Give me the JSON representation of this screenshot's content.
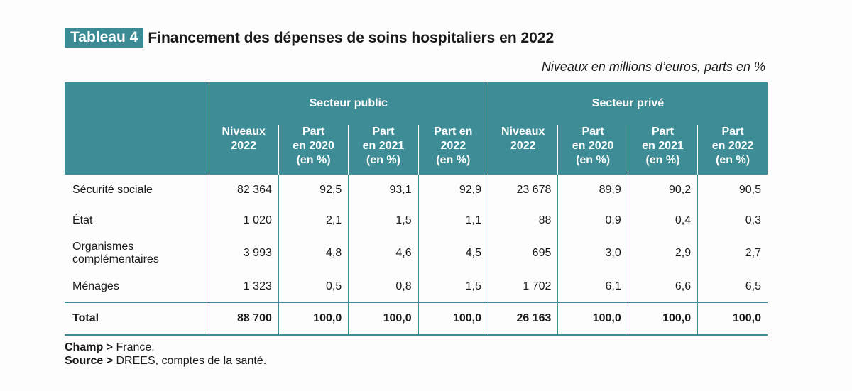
{
  "title": {
    "tag": "Tableau 4",
    "text": "Financement des dépenses de soins hospitaliers en 2022"
  },
  "units": "Niveaux en millions d’euros, parts en %",
  "groups": {
    "public": "Secteur public",
    "private": "Secteur privé"
  },
  "columns": [
    "Niveaux 2022",
    "Part en 2020 (en %)",
    "Part en 2021 (en %)",
    "Part en 2022 (en %)",
    "Niveaux 2022",
    "Part en 2020 (en %)",
    "Part en 2021 (en %)",
    "Part en 2022 (en %)"
  ],
  "column_lines": [
    [
      "Niveaux",
      "2022"
    ],
    [
      "Part",
      "en 2020",
      "(en %)"
    ],
    [
      "Part",
      "en 2021",
      "(en %)"
    ],
    [
      "Part en",
      "2022",
      "(en %)"
    ],
    [
      "Niveaux",
      "2022"
    ],
    [
      "Part",
      "en 2020",
      "(en %)"
    ],
    [
      "Part",
      "en 2021",
      "(en %)"
    ],
    [
      "Part",
      "en 2022",
      "(en %)"
    ]
  ],
  "rows": [
    {
      "label": "Sécurité sociale",
      "label_lines": [
        "Sécurité sociale"
      ],
      "values": [
        "82 364",
        "92,5",
        "93,1",
        "92,9",
        "23 678",
        "89,9",
        "90,2",
        "90,5"
      ]
    },
    {
      "label": "État",
      "label_lines": [
        "État"
      ],
      "values": [
        "1 020",
        "2,1",
        "1,5",
        "1,1",
        "88",
        "0,9",
        "0,4",
        "0,3"
      ]
    },
    {
      "label": "Organismes complémentaires",
      "label_lines": [
        "Organismes",
        "complémentaires"
      ],
      "values": [
        "3 993",
        "4,8",
        "4,6",
        "4,5",
        "695",
        "3,0",
        "2,9",
        "2,7"
      ]
    },
    {
      "label": "Ménages",
      "label_lines": [
        "Ménages"
      ],
      "values": [
        "1 323",
        "0,5",
        "0,8",
        "1,5",
        "1 702",
        "6,1",
        "6,6",
        "6,5"
      ]
    }
  ],
  "total": {
    "label": "Total",
    "values": [
      "88 700",
      "100,0",
      "100,0",
      "100,0",
      "26 163",
      "100,0",
      "100,0",
      "100,0"
    ]
  },
  "footnotes": {
    "champ_label": "Champ >",
    "champ_text": "France.",
    "source_label": "Source >",
    "source_text": "DREES, comptes de la santé."
  },
  "colors": {
    "header_bg": "#3e8c96",
    "tag_bg": "#3b8b94",
    "header_text": "#ffffff"
  }
}
